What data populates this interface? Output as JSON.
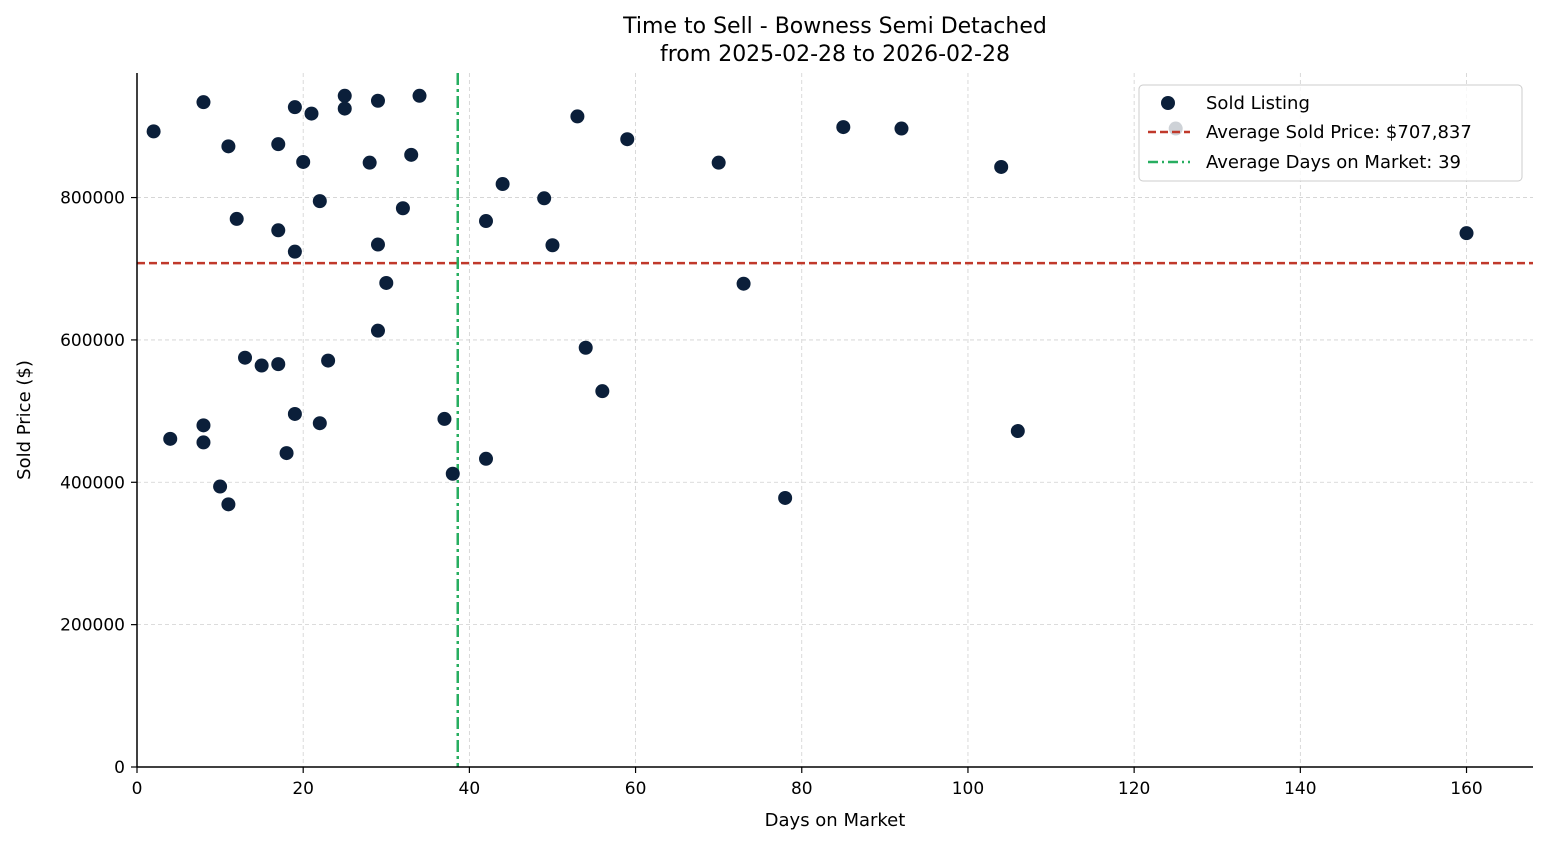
{
  "chart_data": {
    "type": "scatter",
    "title": "Time to Sell - Bowness Semi Detached",
    "subtitle": "from 2025-02-28 to 2026-02-28",
    "xlabel": "Days on Market",
    "ylabel": "Sold Price ($)",
    "xlim": [
      0,
      168
    ],
    "ylim": [
      0,
      975000
    ],
    "xticks": [
      0,
      20,
      40,
      60,
      80,
      100,
      120,
      140,
      160
    ],
    "yticks": [
      0,
      200000,
      400000,
      600000,
      800000
    ],
    "grid": true,
    "legend_position": "top-right",
    "series": [
      {
        "name": "Sold Listing",
        "color": "#0b1f3a",
        "points": [
          [
            2,
            893000
          ],
          [
            4,
            461000
          ],
          [
            8,
            934000
          ],
          [
            8,
            480000
          ],
          [
            8,
            456000
          ],
          [
            10,
            394000
          ],
          [
            11,
            872000
          ],
          [
            11,
            369000
          ],
          [
            12,
            770000
          ],
          [
            13,
            575000
          ],
          [
            15,
            564000
          ],
          [
            17,
            875000
          ],
          [
            17,
            754000
          ],
          [
            17,
            566000
          ],
          [
            18,
            441000
          ],
          [
            19,
            927000
          ],
          [
            19,
            724000
          ],
          [
            19,
            496000
          ],
          [
            20,
            850000
          ],
          [
            21,
            918000
          ],
          [
            22,
            795000
          ],
          [
            22,
            483000
          ],
          [
            23,
            571000
          ],
          [
            25,
            943000
          ],
          [
            25,
            925000
          ],
          [
            28,
            849000
          ],
          [
            29,
            936000
          ],
          [
            29,
            734000
          ],
          [
            29,
            613000
          ],
          [
            30,
            680000
          ],
          [
            32,
            785000
          ],
          [
            33,
            860000
          ],
          [
            34,
            943000
          ],
          [
            37,
            489000
          ],
          [
            38,
            412000
          ],
          [
            42,
            767000
          ],
          [
            42,
            433000
          ],
          [
            44,
            819000
          ],
          [
            49,
            799000
          ],
          [
            50,
            733000
          ],
          [
            53,
            914000
          ],
          [
            54,
            589000
          ],
          [
            56,
            528000
          ],
          [
            59,
            882000
          ],
          [
            70,
            849000
          ],
          [
            73,
            679000
          ],
          [
            78,
            378000
          ],
          [
            85,
            899000
          ],
          [
            92,
            897000
          ],
          [
            104,
            843000
          ],
          [
            106,
            472000
          ],
          [
            125,
            897000
          ],
          [
            160,
            750000
          ]
        ]
      }
    ],
    "reference_lines": [
      {
        "orientation": "horizontal",
        "value": 707837,
        "label": "Average Sold Price: $707,837",
        "style": "dashed",
        "color": "#c0392b"
      },
      {
        "orientation": "vertical",
        "value": 38.6,
        "label": "Average Days on Market: 39",
        "style": "dashdot",
        "color": "#27ae60"
      }
    ]
  }
}
